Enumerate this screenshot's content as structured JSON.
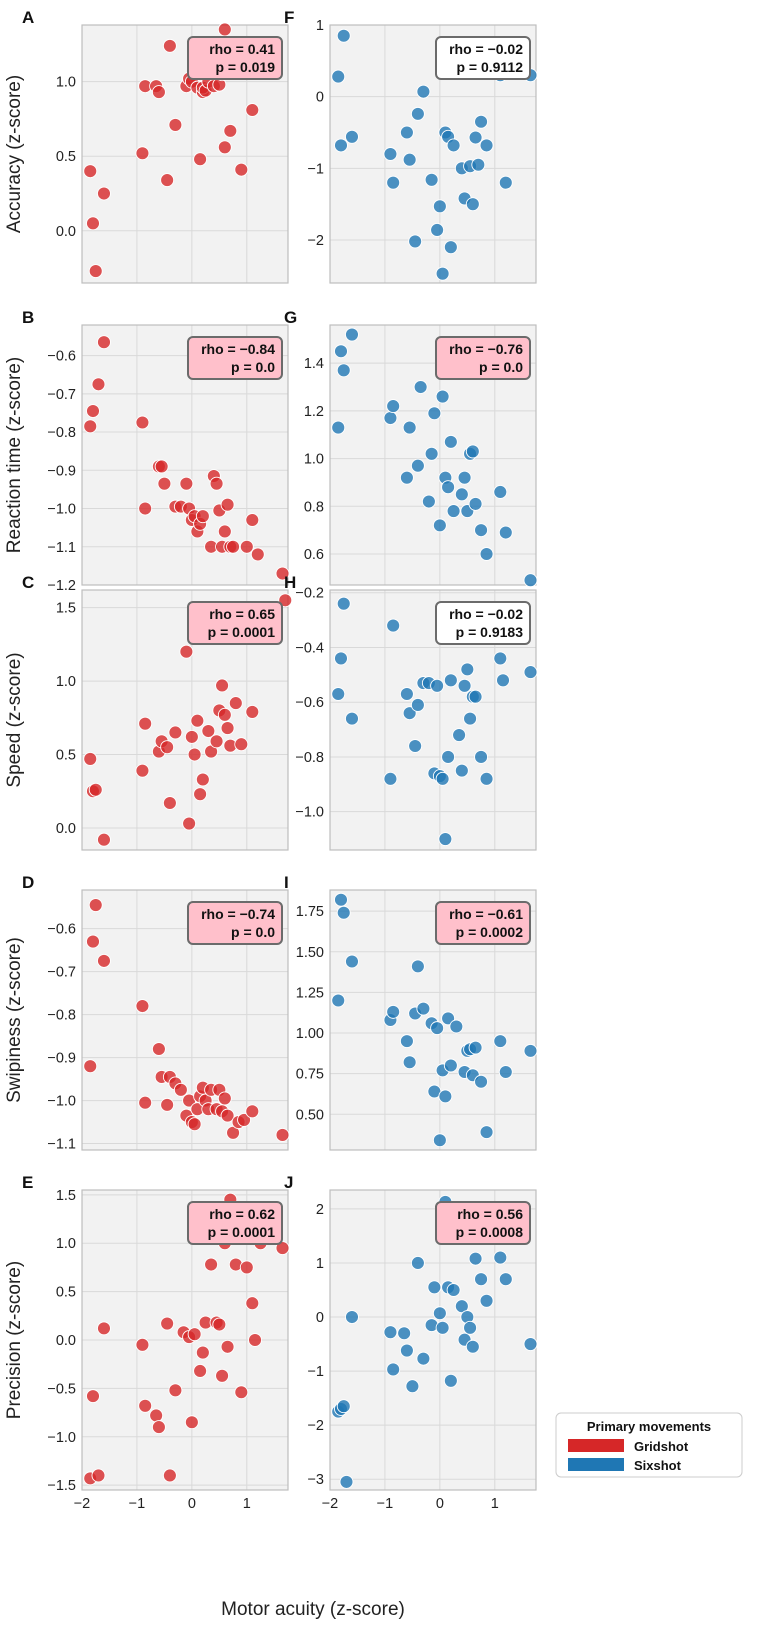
{
  "figure": {
    "xlabel": "Motor acuity (z-score)",
    "legend": {
      "title": "Primary movements",
      "placement": "bottom-right",
      "items": [
        {
          "label": "Gridshot",
          "color": "#d62728"
        },
        {
          "label": "Sixshot",
          "color": "#1f77b4"
        }
      ]
    }
  },
  "chart_data": [
    {
      "type": "scatter",
      "panel": "A",
      "series": "Gridshot",
      "color": "#d62728",
      "ylabel": "Accuracy (z-score)",
      "xlim": [
        -2,
        1.75
      ],
      "ylim": [
        -0.35,
        1.38
      ],
      "xticks": [
        "−2",
        "−1",
        "0",
        "1"
      ],
      "yticks": [
        0.0,
        0.5,
        1.0
      ],
      "ytick_labels": [
        "0.0",
        "0.5",
        "1.0"
      ],
      "show_xticklabels": false,
      "annotation": {
        "rho": "rho = 0.41",
        "p": "p = 0.019",
        "box_fill": "#ffc0cb"
      },
      "x": [
        -1.85,
        -1.8,
        -1.75,
        -1.6,
        -0.9,
        -0.85,
        -0.65,
        -0.6,
        -0.45,
        -0.4,
        -0.3,
        -0.1,
        -0.05,
        0,
        0.1,
        0.15,
        0.2,
        0.2,
        0.25,
        0.3,
        0.4,
        0.5,
        0.55,
        0.6,
        0.6,
        0.7,
        0.9,
        0.95,
        1.1,
        1.25
      ],
      "y": [
        0.4,
        0.05,
        -0.27,
        0.25,
        0.52,
        0.97,
        0.97,
        0.93,
        0.34,
        1.24,
        0.71,
        0.97,
        1.02,
        1.0,
        0.96,
        0.48,
        0.93,
        0.96,
        0.94,
        1.0,
        0.97,
        0.98,
        1.05,
        0.56,
        1.35,
        0.67,
        0.41,
        1.2,
        0.81,
        1.18
      ]
    },
    {
      "type": "scatter",
      "panel": "B",
      "series": "Gridshot",
      "color": "#d62728",
      "ylabel": "Reaction time (z-score)",
      "xlim": [
        -2,
        1.75
      ],
      "ylim": [
        -1.2,
        -0.52
      ],
      "xticks": [
        "−2",
        "−1",
        "0",
        "1"
      ],
      "yticks": [
        -1.2,
        -1.1,
        -1.0,
        -0.9,
        -0.8,
        -0.7,
        -0.6
      ],
      "ytick_labels": [
        "−1.2",
        "−1.1",
        "−1.0",
        "−0.9",
        "−0.8",
        "−0.7",
        "−0.6"
      ],
      "show_xticklabels": false,
      "annotation": {
        "rho": "rho = −0.84",
        "p": "p = 0.0",
        "box_fill": "#ffc0cb"
      },
      "x": [
        -1.85,
        -1.8,
        -1.7,
        -1.6,
        -0.9,
        -0.85,
        -0.6,
        -0.55,
        -0.5,
        -0.3,
        -0.2,
        -0.1,
        -0.05,
        0,
        0.05,
        0.1,
        0.15,
        0.2,
        0.35,
        0.4,
        0.45,
        0.5,
        0.55,
        0.6,
        0.65,
        0.7,
        0.75,
        1.0,
        1.1,
        1.2,
        1.65
      ],
      "y": [
        -0.785,
        -0.745,
        -0.675,
        -0.565,
        -0.775,
        -1.0,
        -0.89,
        -0.89,
        -0.935,
        -0.995,
        -0.995,
        -0.935,
        -1.0,
        -1.03,
        -1.02,
        -1.06,
        -1.04,
        -1.02,
        -1.1,
        -0.915,
        -0.935,
        -1.005,
        -1.1,
        -1.06,
        -0.99,
        -1.1,
        -1.1,
        -1.1,
        -1.03,
        -1.12,
        -1.17
      ]
    },
    {
      "type": "scatter",
      "panel": "C",
      "series": "Gridshot",
      "color": "#d62728",
      "ylabel": "Speed (z-score)",
      "xlim": [
        -2,
        1.75
      ],
      "ylim": [
        -0.15,
        1.62
      ],
      "xticks": [
        "−2",
        "−1",
        "0",
        "1"
      ],
      "yticks": [
        0.0,
        0.5,
        1.0,
        1.5
      ],
      "ytick_labels": [
        "0.0",
        "0.5",
        "1.0",
        "1.5"
      ],
      "show_xticklabels": false,
      "annotation": {
        "rho": "rho = 0.65",
        "p": "p = 0.0001",
        "box_fill": "#ffc0cb"
      },
      "x": [
        -1.85,
        -1.8,
        -1.75,
        -1.6,
        -0.9,
        -0.85,
        -0.6,
        -0.55,
        -0.45,
        -0.4,
        -0.3,
        -0.1,
        -0.05,
        0,
        0.05,
        0.1,
        0.15,
        0.2,
        0.3,
        0.35,
        0.45,
        0.5,
        0.55,
        0.6,
        0.65,
        0.7,
        0.8,
        0.9,
        1.1,
        1.7
      ],
      "y": [
        0.47,
        0.25,
        0.26,
        -0.08,
        0.39,
        0.71,
        0.52,
        0.59,
        0.55,
        0.17,
        0.65,
        1.2,
        0.03,
        0.62,
        0.5,
        0.73,
        0.23,
        0.33,
        0.66,
        0.52,
        0.59,
        0.8,
        0.97,
        0.77,
        0.68,
        0.56,
        0.85,
        0.57,
        0.79,
        1.55
      ]
    },
    {
      "type": "scatter",
      "panel": "D",
      "series": "Gridshot",
      "color": "#d62728",
      "ylabel": "Swipiness (z-score)",
      "xlim": [
        -2,
        1.75
      ],
      "ylim": [
        -1.115,
        -0.51
      ],
      "xticks": [
        "−2",
        "−1",
        "0",
        "1"
      ],
      "yticks": [
        -1.1,
        -1.0,
        -0.9,
        -0.8,
        -0.7,
        -0.6
      ],
      "ytick_labels": [
        "−1.1",
        "−1.0",
        "−0.9",
        "−0.8",
        "−0.7",
        "−0.6"
      ],
      "show_xticklabels": false,
      "annotation": {
        "rho": "rho = −0.74",
        "p": "p = 0.0",
        "box_fill": "#ffc0cb"
      },
      "x": [
        -1.85,
        -1.8,
        -1.75,
        -1.6,
        -0.9,
        -0.85,
        -0.6,
        -0.55,
        -0.45,
        -0.4,
        -0.3,
        -0.2,
        -0.1,
        -0.05,
        0,
        0.05,
        0.1,
        0.15,
        0.2,
        0.25,
        0.3,
        0.35,
        0.45,
        0.5,
        0.55,
        0.6,
        0.65,
        0.75,
        0.85,
        0.95,
        1.1,
        1.65
      ],
      "y": [
        -0.92,
        -0.63,
        -0.545,
        -0.675,
        -0.78,
        -1.005,
        -0.88,
        -0.945,
        -1.01,
        -0.945,
        -0.96,
        -0.975,
        -1.035,
        -1.0,
        -1.05,
        -1.055,
        -1.02,
        -0.99,
        -0.97,
        -1.0,
        -1.02,
        -0.975,
        -1.02,
        -0.975,
        -1.025,
        -0.995,
        -1.035,
        -1.075,
        -1.05,
        -1.045,
        -1.025,
        -1.08
      ]
    },
    {
      "type": "scatter",
      "panel": "E",
      "series": "Gridshot",
      "color": "#d62728",
      "ylabel": "Precision (z-score)",
      "xlim": [
        -2,
        1.75
      ],
      "ylim": [
        -1.55,
        1.55
      ],
      "xticks": [
        "−2",
        "−1",
        "0",
        "1"
      ],
      "yticks": [
        -1.5,
        -1.0,
        -0.5,
        0.0,
        0.5,
        1.0,
        1.5
      ],
      "ytick_labels": [
        "−1.5",
        "−1.0",
        "−0.5",
        "0.0",
        "0.5",
        "1.0",
        "1.5"
      ],
      "show_xticklabels": true,
      "annotation": {
        "rho": "rho = 0.62",
        "p": "p = 0.0001",
        "box_fill": "#ffc0cb"
      },
      "x": [
        -1.85,
        -1.8,
        -1.7,
        -1.6,
        -0.9,
        -0.85,
        -0.65,
        -0.6,
        -0.45,
        -0.4,
        -0.3,
        -0.15,
        -0.05,
        0,
        0.05,
        0.15,
        0.2,
        0.25,
        0.35,
        0.45,
        0.5,
        0.55,
        0.6,
        0.65,
        0.7,
        0.8,
        0.9,
        1.0,
        1.1,
        1.15,
        1.25,
        1.65
      ],
      "y": [
        -1.43,
        -0.58,
        -1.4,
        0.12,
        -0.05,
        -0.68,
        -0.78,
        -0.9,
        0.17,
        -1.4,
        -0.52,
        0.08,
        0.03,
        -0.85,
        0.06,
        -0.32,
        -0.13,
        0.18,
        0.78,
        0.18,
        0.16,
        -0.37,
        1.0,
        -0.07,
        1.45,
        0.78,
        -0.54,
        0.75,
        0.38,
        0.0,
        1.0,
        0.95
      ]
    },
    {
      "type": "scatter",
      "panel": "F",
      "series": "Sixshot",
      "color": "#1f77b4",
      "ylabel": "",
      "xlim": [
        -2,
        1.75
      ],
      "ylim": [
        -2.6,
        1.0
      ],
      "xticks": [
        "−2",
        "−1",
        "0",
        "1"
      ],
      "yticks": [
        -2,
        -1,
        0,
        1
      ],
      "ytick_labels": [
        "−2",
        "−1",
        "0",
        "1"
      ],
      "show_xticklabels": false,
      "annotation": {
        "rho": "rho = −0.02",
        "p": "p = 0.9112",
        "box_fill": "#ffffff"
      },
      "x": [
        -1.85,
        -1.8,
        -1.75,
        -1.6,
        -0.9,
        -0.85,
        -0.6,
        -0.55,
        -0.45,
        -0.4,
        -0.3,
        -0.15,
        -0.05,
        0,
        0.05,
        0.1,
        0.15,
        0.2,
        0.25,
        0.4,
        0.45,
        0.55,
        0.6,
        0.65,
        0.7,
        0.75,
        0.85,
        1.1,
        1.2,
        1.65
      ],
      "y": [
        0.28,
        -0.68,
        0.85,
        -0.56,
        -0.8,
        -1.2,
        -0.5,
        -0.88,
        -2.02,
        -0.24,
        0.07,
        -1.16,
        -1.86,
        -1.53,
        -2.47,
        -0.5,
        -0.56,
        -2.1,
        -0.68,
        -1.0,
        -1.42,
        -0.97,
        -1.5,
        -0.57,
        -0.95,
        -0.35,
        -0.68,
        0.3,
        -1.2,
        0.3
      ]
    },
    {
      "type": "scatter",
      "panel": "G",
      "series": "Sixshot",
      "color": "#1f77b4",
      "ylabel": "",
      "xlim": [
        -2,
        1.75
      ],
      "ylim": [
        0.47,
        1.56
      ],
      "xticks": [
        "−2",
        "−1",
        "0",
        "1"
      ],
      "yticks": [
        0.6,
        0.8,
        1.0,
        1.2,
        1.4
      ],
      "ytick_labels": [
        "0.6",
        "0.8",
        "1.0",
        "1.2",
        "1.4"
      ],
      "show_xticklabels": false,
      "annotation": {
        "rho": "rho = −0.76",
        "p": "p = 0.0",
        "box_fill": "#ffc0cb"
      },
      "x": [
        -1.85,
        -1.8,
        -1.75,
        -1.6,
        -0.9,
        -0.85,
        -0.6,
        -0.55,
        -0.4,
        -0.35,
        -0.2,
        -0.15,
        -0.1,
        0,
        0.05,
        0.1,
        0.15,
        0.2,
        0.25,
        0.4,
        0.45,
        0.5,
        0.55,
        0.6,
        0.65,
        0.75,
        0.85,
        1.1,
        1.2,
        1.65
      ],
      "y": [
        1.13,
        1.45,
        1.37,
        1.52,
        1.17,
        1.22,
        0.92,
        1.13,
        0.97,
        1.3,
        0.82,
        1.02,
        1.19,
        0.72,
        1.26,
        0.92,
        0.88,
        1.07,
        0.78,
        0.85,
        0.92,
        0.78,
        1.02,
        1.03,
        0.81,
        0.7,
        0.6,
        0.86,
        0.69,
        0.49
      ]
    },
    {
      "type": "scatter",
      "panel": "H",
      "series": "Sixshot",
      "color": "#1f77b4",
      "ylabel": "",
      "xlim": [
        -2,
        1.75
      ],
      "ylim": [
        -1.14,
        -0.19
      ],
      "xticks": [
        "−2",
        "−1",
        "0",
        "1"
      ],
      "yticks": [
        -1.0,
        -0.8,
        -0.6,
        -0.4,
        -0.2
      ],
      "ytick_labels": [
        "−1.0",
        "−0.8",
        "−0.6",
        "−0.4",
        "−0.2"
      ],
      "show_xticklabels": false,
      "annotation": {
        "rho": "rho = −0.02",
        "p": "p = 0.9183",
        "box_fill": "#ffffff"
      },
      "x": [
        -1.85,
        -1.8,
        -1.75,
        -1.6,
        -0.9,
        -0.85,
        -0.6,
        -0.55,
        -0.45,
        -0.4,
        -0.3,
        -0.2,
        -0.1,
        -0.05,
        0,
        0.05,
        0.1,
        0.15,
        0.2,
        0.35,
        0.4,
        0.45,
        0.5,
        0.55,
        0.6,
        0.65,
        0.75,
        0.85,
        1.1,
        1.15,
        1.65
      ],
      "y": [
        -0.57,
        -0.44,
        -0.24,
        -0.66,
        -0.88,
        -0.32,
        -0.57,
        -0.64,
        -0.76,
        -0.61,
        -0.53,
        -0.53,
        -0.86,
        -0.54,
        -0.87,
        -0.88,
        -1.1,
        -0.8,
        -0.52,
        -0.72,
        -0.85,
        -0.54,
        -0.48,
        -0.66,
        -0.58,
        -0.58,
        -0.8,
        -0.88,
        -0.44,
        -0.52,
        -0.49
      ]
    },
    {
      "type": "scatter",
      "panel": "I",
      "series": "Sixshot",
      "color": "#1f77b4",
      "ylabel": "",
      "xlim": [
        -2,
        1.75
      ],
      "ylim": [
        0.28,
        1.88
      ],
      "xticks": [
        "−2",
        "−1",
        "0",
        "1"
      ],
      "yticks": [
        0.5,
        0.75,
        1.0,
        1.25,
        1.5,
        1.75
      ],
      "ytick_labels": [
        "0.50",
        "0.75",
        "1.00",
        "1.25",
        "1.50",
        "1.75"
      ],
      "show_xticklabels": false,
      "annotation": {
        "rho": "rho = −0.61",
        "p": "p = 0.0002",
        "box_fill": "#ffc0cb"
      },
      "x": [
        -1.85,
        -1.8,
        -1.75,
        -1.6,
        -0.9,
        -0.85,
        -0.6,
        -0.55,
        -0.45,
        -0.4,
        -0.3,
        -0.15,
        -0.1,
        -0.05,
        0,
        0.05,
        0.1,
        0.15,
        0.2,
        0.3,
        0.45,
        0.5,
        0.55,
        0.6,
        0.65,
        0.75,
        0.85,
        1.1,
        1.2,
        1.65
      ],
      "y": [
        1.2,
        1.82,
        1.74,
        1.44,
        1.08,
        1.13,
        0.95,
        0.82,
        1.12,
        1.41,
        1.15,
        1.06,
        0.64,
        1.03,
        0.34,
        0.77,
        0.61,
        1.09,
        0.8,
        1.04,
        0.76,
        0.89,
        0.9,
        0.74,
        0.91,
        0.7,
        0.39,
        0.95,
        0.76,
        0.89
      ]
    },
    {
      "type": "scatter",
      "panel": "J",
      "series": "Sixshot",
      "color": "#1f77b4",
      "ylabel": "",
      "xlim": [
        -2,
        1.75
      ],
      "ylim": [
        -3.2,
        2.35
      ],
      "xticks": [
        "−2",
        "−1",
        "0",
        "1"
      ],
      "yticks": [
        -3,
        -2,
        -1,
        0,
        1,
        2
      ],
      "ytick_labels": [
        "−3",
        "−2",
        "−1",
        "0",
        "1",
        "2"
      ],
      "show_xticklabels": true,
      "annotation": {
        "rho": "rho = 0.56",
        "p": "p = 0.0008",
        "box_fill": "#ffc0cb"
      },
      "x": [
        -1.85,
        -1.8,
        -1.75,
        -1.7,
        -1.6,
        -0.9,
        -0.85,
        -0.65,
        -0.6,
        -0.5,
        -0.4,
        -0.3,
        -0.15,
        -0.1,
        0,
        0.05,
        0.1,
        0.15,
        0.2,
        0.25,
        0.4,
        0.45,
        0.5,
        0.55,
        0.6,
        0.65,
        0.75,
        0.85,
        1.1,
        1.2,
        1.65
      ],
      "y": [
        -1.75,
        -1.7,
        -1.65,
        -3.05,
        0.0,
        -0.28,
        -0.97,
        -0.3,
        -0.62,
        -1.28,
        1.0,
        -0.77,
        -0.15,
        0.55,
        0.07,
        -0.2,
        2.13,
        0.55,
        -1.18,
        0.5,
        0.2,
        -0.42,
        0.0,
        -0.2,
        -0.55,
        1.08,
        0.7,
        0.3,
        1.1,
        0.7,
        -0.5
      ]
    }
  ]
}
